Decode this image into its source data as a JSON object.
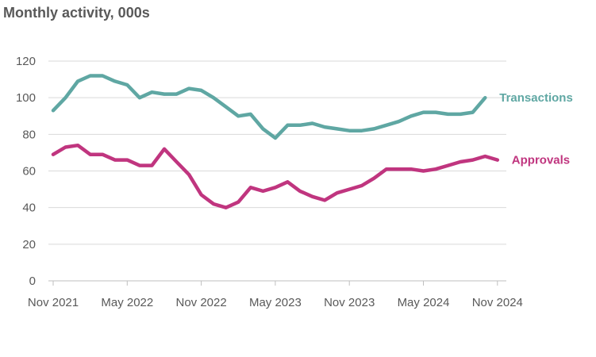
{
  "chart_data": {
    "type": "line",
    "title": "Monthly activity, 000s",
    "xlabel": "",
    "ylabel": "",
    "ylim": [
      0,
      120
    ],
    "yticks": [
      0,
      20,
      40,
      60,
      80,
      100,
      120
    ],
    "xtick_labels": [
      "Nov 2021",
      "May 2022",
      "Nov 2022",
      "May 2023",
      "Nov 2023",
      "May 2024",
      "Nov 2024"
    ],
    "grid": "horizontal",
    "x": [
      "Nov 2021",
      "Dec 2021",
      "Jan 2022",
      "Feb 2022",
      "Mar 2022",
      "Apr 2022",
      "May 2022",
      "Jun 2022",
      "Jul 2022",
      "Aug 2022",
      "Sep 2022",
      "Oct 2022",
      "Nov 2022",
      "Dec 2022",
      "Jan 2023",
      "Feb 2023",
      "Mar 2023",
      "Apr 2023",
      "May 2023",
      "Jun 2023",
      "Jul 2023",
      "Aug 2023",
      "Sep 2023",
      "Oct 2023",
      "Nov 2023",
      "Dec 2023",
      "Jan 2024",
      "Feb 2024",
      "Mar 2024",
      "Apr 2024",
      "May 2024",
      "Jun 2024",
      "Jul 2024",
      "Aug 2024",
      "Sep 2024",
      "Oct 2024",
      "Nov 2024"
    ],
    "series": [
      {
        "name": "Transactions",
        "color": "#5fa7a3",
        "values": [
          93,
          100,
          109,
          112,
          112,
          109,
          107,
          100,
          103,
          102,
          102,
          105,
          104,
          100,
          95,
          90,
          91,
          83,
          78,
          85,
          85,
          86,
          84,
          83,
          82,
          82,
          83,
          85,
          87,
          90,
          92,
          92,
          91,
          91,
          92,
          100,
          null
        ]
      },
      {
        "name": "Approvals",
        "color": "#c0357f",
        "values": [
          69,
          73,
          74,
          69,
          69,
          66,
          66,
          63,
          63,
          72,
          65,
          58,
          47,
          42,
          40,
          43,
          51,
          49,
          51,
          54,
          49,
          46,
          44,
          48,
          50,
          52,
          56,
          61,
          61,
          61,
          60,
          61,
          63,
          65,
          66,
          68,
          66
        ]
      }
    ]
  }
}
